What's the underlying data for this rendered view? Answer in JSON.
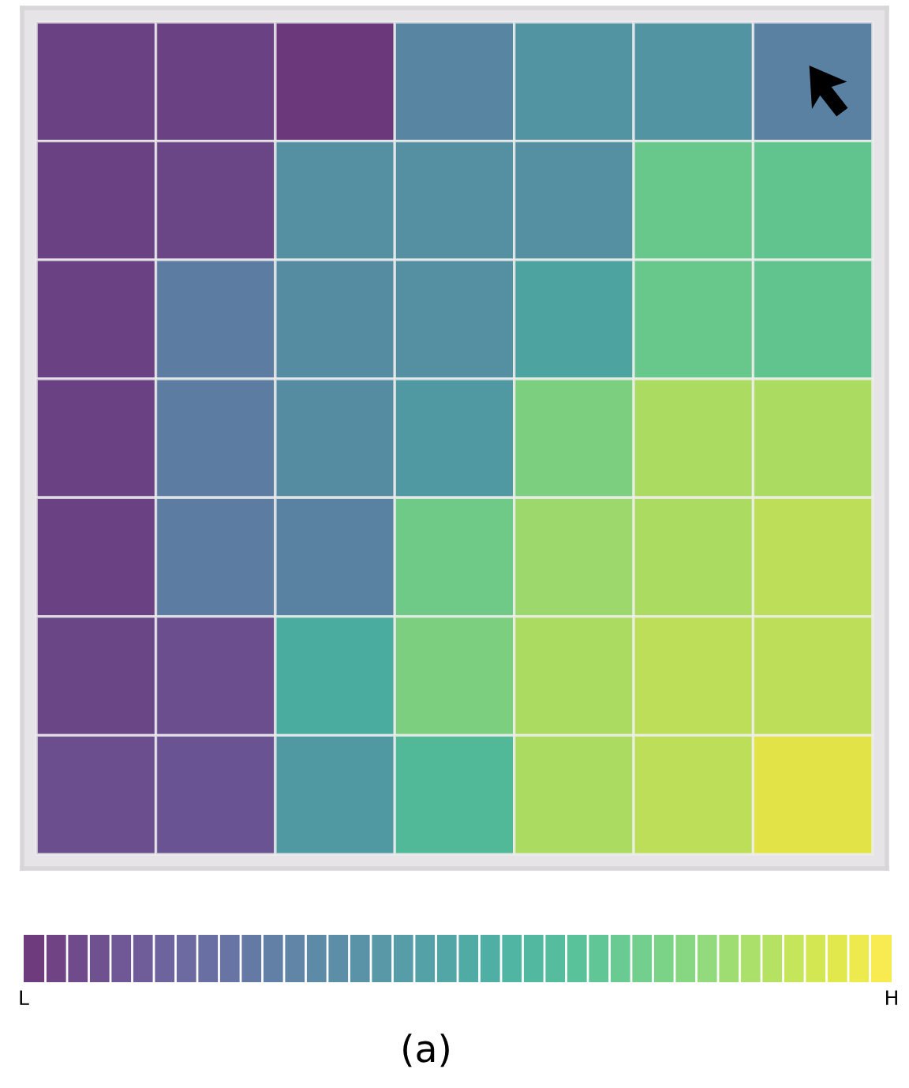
{
  "chart_data": {
    "type": "heatmap",
    "categories": [
      null,
      null,
      null,
      null,
      null,
      null,
      null
    ],
    "y_categories": [
      null,
      null,
      null,
      null,
      null,
      null,
      null
    ],
    "cells": [
      [
        0.05,
        0.05,
        0.02,
        0.35,
        0.42,
        0.42,
        0.32
      ],
      [
        0.05,
        0.07,
        0.4,
        0.4,
        0.4,
        0.7,
        0.68
      ],
      [
        0.05,
        0.3,
        0.38,
        0.4,
        0.5,
        0.7,
        0.68
      ],
      [
        0.05,
        0.3,
        0.38,
        0.45,
        0.75,
        0.85,
        0.85
      ],
      [
        0.05,
        0.3,
        0.33,
        0.72,
        0.82,
        0.85,
        0.88
      ],
      [
        0.07,
        0.1,
        0.55,
        0.75,
        0.85,
        0.88,
        0.88
      ],
      [
        0.1,
        0.12,
        0.45,
        0.62,
        0.85,
        0.88,
        0.95
      ]
    ],
    "clim": [
      0,
      1
    ],
    "cticks": [
      {
        "value": 0,
        "label": "L"
      },
      {
        "value": 1,
        "label": "H"
      }
    ],
    "annotations": [
      "(a)"
    ]
  }
}
